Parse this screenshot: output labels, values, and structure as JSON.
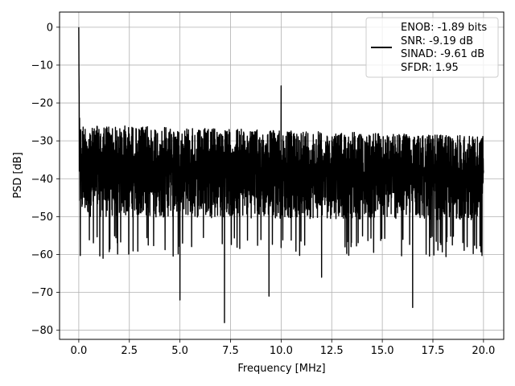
{
  "chart_data": {
    "type": "line",
    "title": "",
    "xlabel": "Frequency [MHz]",
    "ylabel": "PSD [dB]",
    "xlim": [
      -0.95,
      21.0
    ],
    "ylim": [
      -82.4,
      4.0
    ],
    "grid": true,
    "legend_position": "top-right",
    "xticks": [
      0.0,
      2.5,
      5.0,
      7.5,
      10.0,
      12.5,
      15.0,
      17.5,
      20.0
    ],
    "xtick_labels": [
      "0.0",
      "2.5",
      "5.0",
      "7.5",
      "10.0",
      "12.5",
      "15.0",
      "17.5",
      "20.0"
    ],
    "yticks": [
      0,
      -10,
      -20,
      -30,
      -40,
      -50,
      -60,
      -70,
      -80
    ],
    "ytick_labels": [
      "0",
      "−10",
      "−20",
      "−30",
      "−40",
      "−50",
      "−60",
      "−70",
      "−80"
    ],
    "series": [
      {
        "color": "#000000",
        "legend_lines": [
          "ENOB: -1.89 bits",
          "SNR: -9.19 dB",
          "SINAD: -9.61 dB",
          "SFDR: 1.95"
        ],
        "noise_band": {
          "x_range": [
            0.05,
            20.0
          ],
          "upper_envelope_db": -25,
          "lower_envelope_db": -50,
          "typical_peak_db": -27,
          "typical_trough_db": -55
        },
        "peaks": [
          {
            "x": 0.0,
            "y": 0.0
          },
          {
            "x": 0.02,
            "y": -18.0
          },
          {
            "x": 10.0,
            "y": -15.5
          }
        ],
        "notable_minima": [
          {
            "x": 5.0,
            "y": -72.0
          },
          {
            "x": 7.2,
            "y": -78.0
          },
          {
            "x": 9.4,
            "y": -71.0
          },
          {
            "x": 16.5,
            "y": -74.0
          },
          {
            "x": 12.0,
            "y": -66.0
          },
          {
            "x": 1.2,
            "y": -61.0
          }
        ]
      }
    ]
  }
}
